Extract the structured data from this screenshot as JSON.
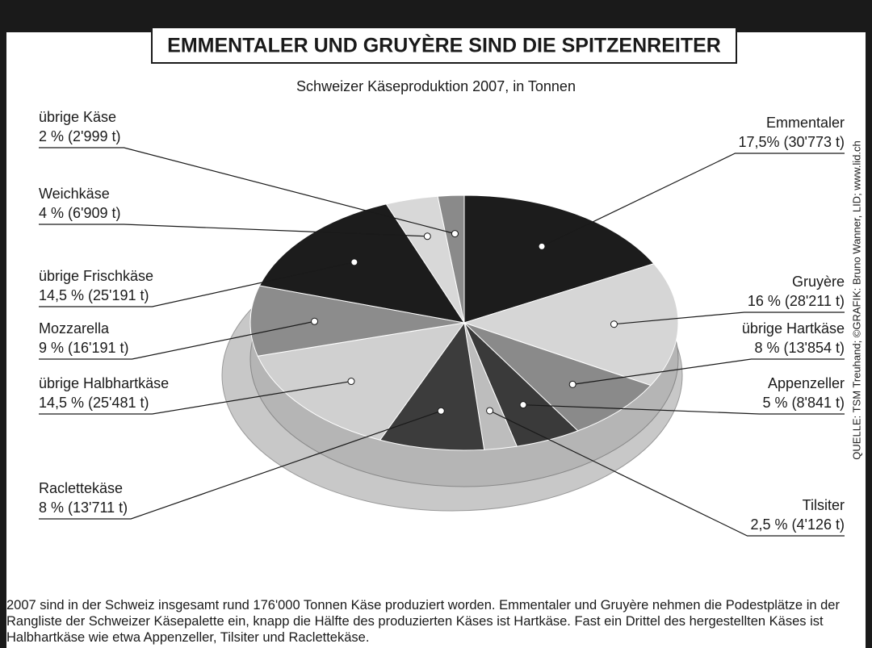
{
  "chart_data": {
    "type": "pie",
    "title": "EMMENTALER UND GRUYÈRE SIND DIE SPITZENREITER",
    "subtitle": "Schweizer Käseproduktion 2007, in Tonnen",
    "categories": [
      "Emmentaler",
      "Gruyère",
      "übrige Hartkäse",
      "Appenzeller",
      "Tilsiter",
      "Raclettekäse",
      "übrige Halbhartkäse",
      "Mozzarella",
      "übrige Frischkäse",
      "Weichkäse",
      "übrige Käse"
    ],
    "values": [
      17.5,
      16,
      8,
      5,
      2.5,
      8,
      14.5,
      9,
      14.5,
      4,
      2
    ],
    "value_labels": [
      "17,5% (30'773 t)",
      "16 % (28'211 t)",
      "8 % (13'854 t)",
      "5 % (8'841 t)",
      "2,5 % (4'126 t)",
      "8 % (13'711 t)",
      "14,5 % (25'481 t)",
      " 9 % (16'191 t)",
      "14,5 % (25'191 t)",
      "4 % (6'909 t)",
      "2 % (2'999 t)"
    ],
    "colors": [
      "#1c1c1c",
      "#d6d6d6",
      "#8a8a8a",
      "#3a3a3a",
      "#bdbdbd",
      "#3c3c3c",
      "#d0d0d0",
      "#8c8c8c",
      "#1c1c1c",
      "#d8d8d8",
      "#8a8a8a"
    ],
    "source": "QUELLE: TSM Treuhand;  ©GRAFIK: Bruno Wanner, LID; www.lid.ch",
    "footnote": "2007 sind in der Schweiz insgesamt rund 176'000 Tonnen Käse produziert worden. Emmentaler und Gruyère nehmen die Podestplätze in der Rangliste der Schweizer Käsepalette ein, knapp die Hälfte des produzierten Käses ist Hartkäse. Fast ein Drittel des hergestellten Käses ist Halbhartkäse wie etwa Appenzeller, Tilsiter und Raclettekäse."
  }
}
